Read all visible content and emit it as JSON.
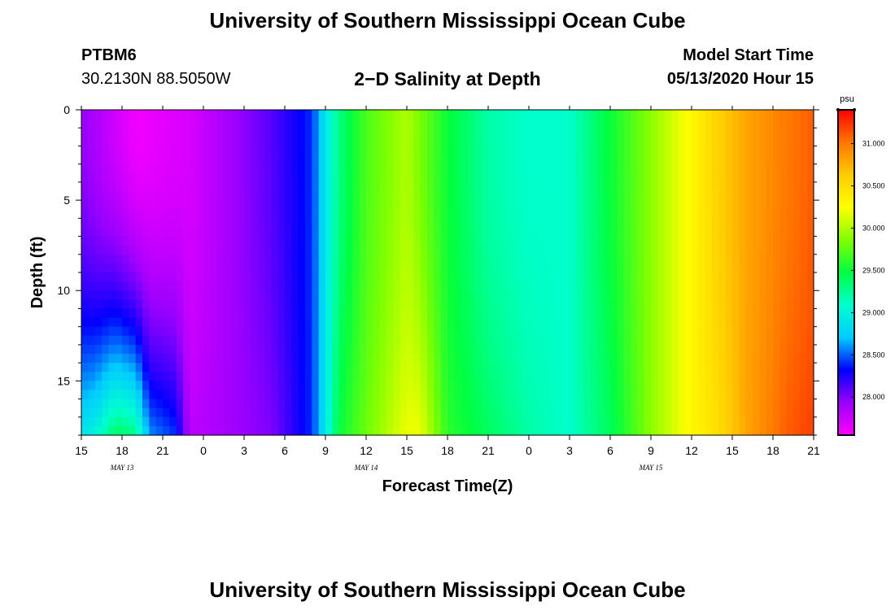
{
  "header": {
    "title": "University of Southern Mississippi Ocean Cube",
    "station": "PTBM6",
    "coords": "30.2130N 88.5050W",
    "subtitle": "2−D Salinity at Depth",
    "model_label": "Model Start Time",
    "model_time": "05/13/2020 Hour 15"
  },
  "footer": {
    "title": "University of Southern Mississippi Ocean Cube"
  },
  "chart_data": {
    "type": "heatmap",
    "title": "2−D Salinity at Depth",
    "xlabel": "Forecast Time(Z)",
    "ylabel": "Depth (ft)",
    "x_tick_labels": [
      "15",
      "18",
      "21",
      "0",
      "3",
      "6",
      "9",
      "12",
      "15",
      "18",
      "21",
      "0",
      "3",
      "6",
      "9",
      "12",
      "15",
      "18",
      "21"
    ],
    "date_labels": [
      {
        "label": "MAY 13",
        "tick_index": 1
      },
      {
        "label": "MAY 14",
        "tick_index": 7
      },
      {
        "label": "MAY 15",
        "tick_index": 14
      }
    ],
    "x_range_hours": [
      0,
      54
    ],
    "y_range_ft": [
      0,
      18
    ],
    "y_ticks": [
      0,
      5,
      10,
      15
    ],
    "colorbar": {
      "unit": "psu",
      "range": [
        27.55,
        31.4
      ],
      "ticks": [
        "28.000",
        "28.500",
        "29.000",
        "29.500",
        "30.000",
        "30.500",
        "31.000"
      ],
      "tick_values": [
        28.0,
        28.5,
        29.0,
        29.5,
        30.0,
        30.5,
        31.0
      ],
      "colors": [
        "#ff00ff",
        "#9a00ff",
        "#0000ff",
        "#00ccff",
        "#00ffd0",
        "#00ff40",
        "#80ff00",
        "#ffff00",
        "#ffcc00",
        "#ff7700",
        "#ff0000"
      ]
    },
    "surface_salinity": {
      "hours": [
        0,
        4,
        8,
        11,
        14,
        17,
        18,
        19,
        21,
        24,
        27,
        30,
        33,
        36,
        39,
        42,
        45,
        47,
        49,
        52,
        54
      ],
      "values": [
        27.95,
        27.6,
        27.7,
        27.9,
        28.1,
        28.4,
        28.9,
        29.3,
        29.7,
        30.0,
        29.5,
        29.2,
        29.1,
        29.1,
        29.5,
        29.9,
        30.3,
        30.6,
        30.8,
        31.0,
        31.1
      ]
    },
    "bottom_salinity": {
      "hours": [
        0,
        1,
        2.5,
        4,
        5,
        7,
        8,
        14,
        17,
        18,
        19,
        21,
        24,
        25,
        27,
        30,
        33,
        36,
        39,
        42,
        45,
        47,
        49,
        52,
        54
      ],
      "values": [
        28.9,
        29.0,
        29.4,
        29.3,
        28.6,
        28.4,
        27.8,
        28.0,
        28.4,
        28.9,
        29.5,
        29.8,
        30.2,
        30.2,
        29.6,
        29.4,
        29.2,
        29.1,
        29.4,
        29.9,
        30.3,
        30.5,
        30.8,
        31.1,
        31.2
      ]
    }
  }
}
